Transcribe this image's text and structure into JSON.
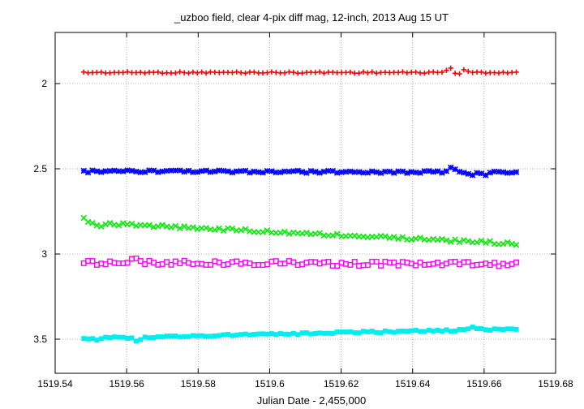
{
  "chart_data": {
    "type": "scatter",
    "title": "_uzboo field, clear 4-pix diff mag, 12-inch, 2013 Aug 15 UT",
    "xlabel": "Julian Date - 2,455,000",
    "ylabel": "",
    "xlim": [
      1519.54,
      1519.68
    ],
    "ylim": [
      3.7,
      1.7
    ],
    "y_reversed": true,
    "grid": true,
    "x_ticks": [
      "1519.54",
      "1519.56",
      "1519.58",
      "1519.6",
      "1519.62",
      "1519.64",
      "1519.66",
      "1519.68"
    ],
    "y_ticks": [
      "2",
      "2.5",
      "3",
      "3.5"
    ],
    "x_start": 1519.548,
    "x_end": 1519.669,
    "series": [
      {
        "color": "#ff0000",
        "marker": "plus",
        "start": 1.935,
        "end": 1.935,
        "wobble": 0.004,
        "bumps": [
          {
            "x": 1519.6505,
            "dy": -0.03
          },
          {
            "x": 1519.6525,
            "dy": 0.015
          },
          {
            "x": 1519.6545,
            "dy": -0.015
          }
        ]
      },
      {
        "color": "#0000ff",
        "marker": "asterisk",
        "start": 2.515,
        "end": 2.52,
        "wobble": 0.007,
        "bumps": [
          {
            "x": 1519.651,
            "dy": -0.03
          },
          {
            "x": 1519.657,
            "dy": 0.02
          },
          {
            "x": 1519.66,
            "dy": 0.02
          }
        ]
      },
      {
        "color": "#00ee00",
        "marker": "x",
        "start": 2.815,
        "end": 2.94,
        "wobble": 0.008,
        "bumps": [
          {
            "x": 1519.548,
            "dy": -0.02
          },
          {
            "x": 1519.552,
            "dy": 0.02
          }
        ]
      },
      {
        "color": "#ff00ff",
        "marker": "square",
        "start": 3.05,
        "end": 3.06,
        "wobble": 0.014,
        "bumps": [
          {
            "x": 1519.5625,
            "dy": -0.03
          }
        ]
      },
      {
        "color": "#00eeee",
        "marker": "filled-square",
        "start": 3.495,
        "end": 3.44,
        "wobble": 0.006,
        "bumps": [
          {
            "x": 1519.552,
            "dy": 0.015
          },
          {
            "x": 1519.563,
            "dy": 0.025
          },
          {
            "x": 1519.657,
            "dy": -0.02
          }
        ]
      }
    ]
  }
}
